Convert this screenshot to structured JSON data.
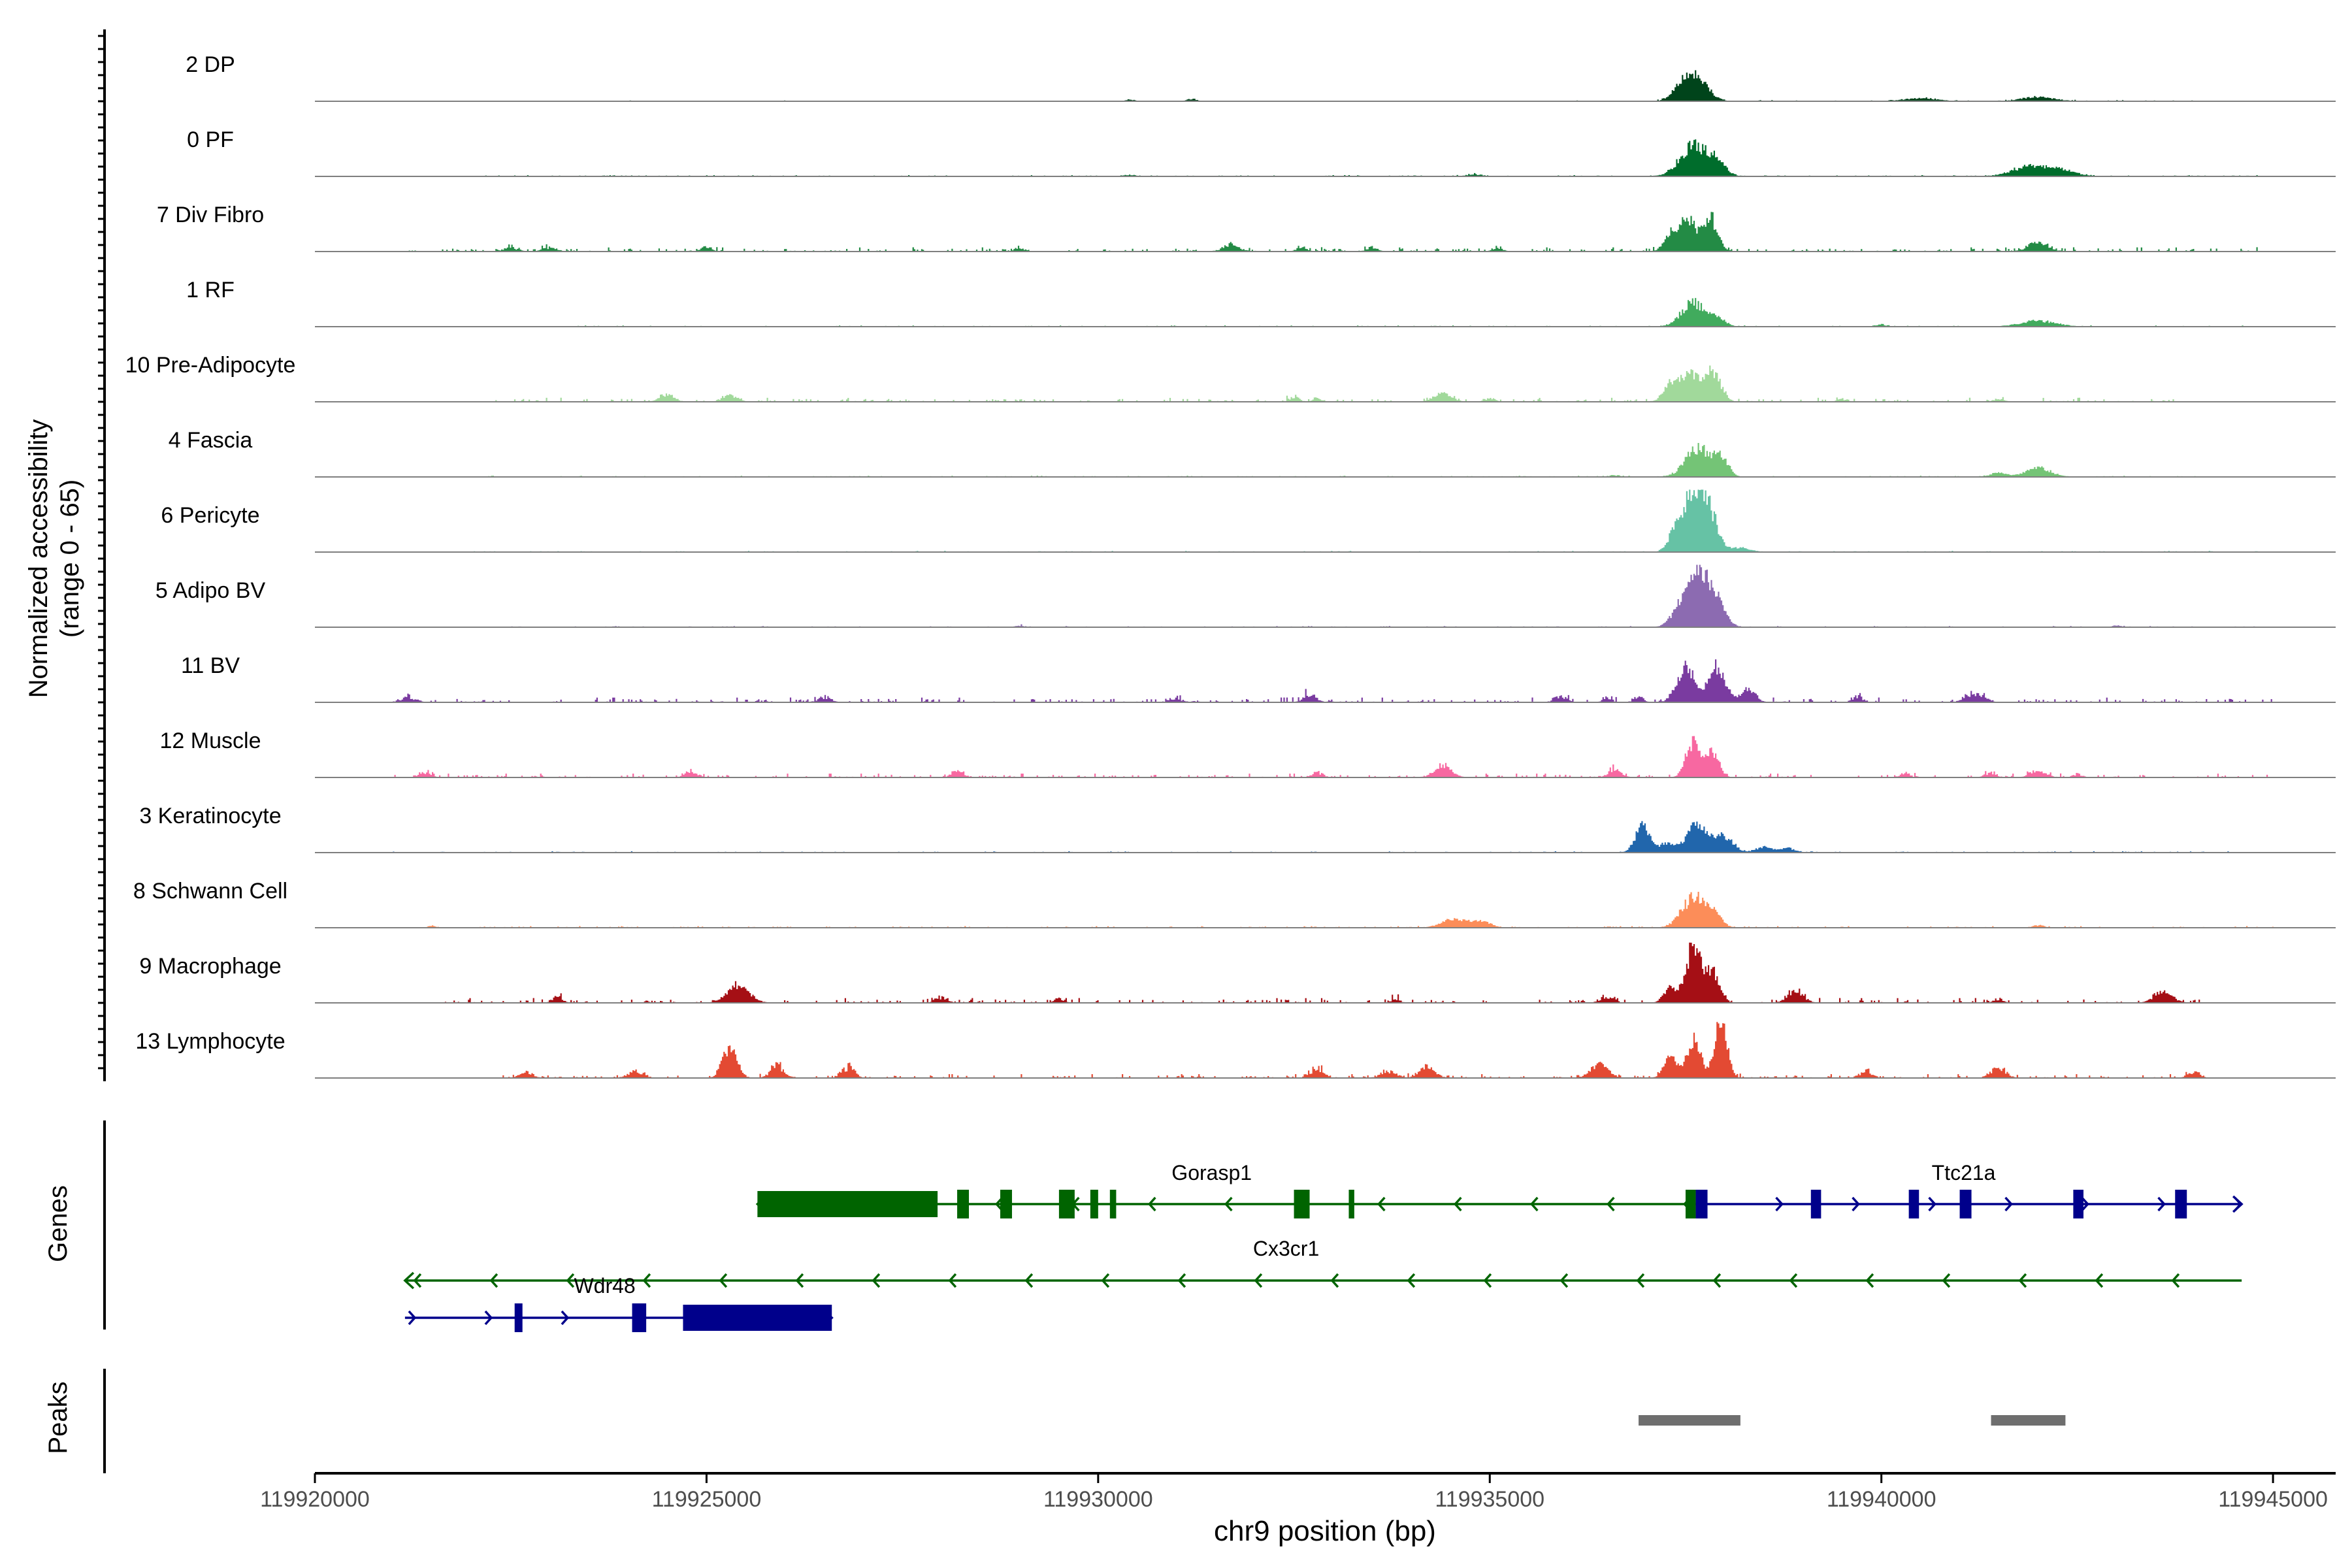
{
  "chart_data": {
    "type": "area",
    "subtype": "genome-browser coverage tracks",
    "x": {
      "label": "chr9 position (bp)",
      "range": [
        119920000,
        119945800
      ],
      "ticks": [
        119920000,
        119925000,
        119930000,
        119935000,
        119940000,
        119945000
      ],
      "tick_labels": [
        "119920000",
        "119925000",
        "119930000",
        "119935000",
        "119940000",
        "119945000"
      ]
    },
    "y": {
      "label_line1": "Normalized accessibility",
      "label_line2": "(range 0 - 65)",
      "range": [
        0,
        65
      ]
    },
    "series": [
      {
        "name": "2 DP",
        "color": "#00441b",
        "bg": 0.25,
        "noise": [
          [
            119922500,
            119926000,
            0.6
          ],
          [
            119936000,
            119944000,
            1.0
          ]
        ],
        "peaks": [
          [
            119937620,
            150,
            36
          ],
          [
            119937450,
            120,
            12
          ],
          [
            119942000,
            200,
            6
          ],
          [
            119940500,
            200,
            4
          ]
        ],
        "bumps": [
          [
            119931200,
            60,
            3
          ],
          [
            119930400,
            60,
            2
          ]
        ]
      },
      {
        "name": "0 PF",
        "color": "#006d2c",
        "bg": 0.4,
        "noise": [
          [
            119922000,
            119945000,
            1.0
          ]
        ],
        "peaks": [
          [
            119937600,
            170,
            44
          ],
          [
            119937900,
            110,
            18
          ],
          [
            119941900,
            220,
            14
          ],
          [
            119942300,
            180,
            8
          ]
        ],
        "bumps": [
          [
            119934800,
            80,
            3
          ],
          [
            119930400,
            60,
            2
          ]
        ]
      },
      {
        "name": "7 Div Fibro",
        "color": "#238b45",
        "bg": 0.5,
        "noise": [
          [
            119921200,
            119945000,
            4.0
          ]
        ],
        "peaks": [
          [
            119937530,
            110,
            46
          ],
          [
            119937820,
            90,
            46
          ],
          [
            119937300,
            80,
            20
          ],
          [
            119942000,
            120,
            12
          ]
        ],
        "bumps": [
          [
            119922500,
            80,
            6
          ],
          [
            119923000,
            80,
            5
          ],
          [
            119925000,
            60,
            6
          ],
          [
            119929000,
            60,
            5
          ],
          [
            119931700,
            100,
            9
          ],
          [
            119933500,
            60,
            6
          ],
          [
            119935100,
            60,
            4
          ],
          [
            119932600,
            60,
            5
          ]
        ]
      },
      {
        "name": "1 RF",
        "color": "#41ab5d",
        "bg": 0.3,
        "noise": [
          [
            119923000,
            119945000,
            1.0
          ]
        ],
        "peaks": [
          [
            119937600,
            150,
            34
          ],
          [
            119937900,
            100,
            12
          ],
          [
            119942000,
            220,
            8
          ]
        ],
        "bumps": [
          [
            119940000,
            60,
            3
          ]
        ]
      },
      {
        "name": "10 Pre-Adipocyte",
        "color": "#a1d99b",
        "bg": 0.2,
        "noise": [
          [
            119922300,
            119944000,
            4.0
          ]
        ],
        "peaks": [
          [
            119937550,
            120,
            40
          ],
          [
            119937850,
            100,
            42
          ],
          [
            119937300,
            90,
            22
          ],
          [
            119934400,
            110,
            12
          ],
          [
            119924500,
            90,
            10
          ],
          [
            119925300,
            90,
            9
          ]
        ],
        "bumps": [
          [
            119932500,
            60,
            7
          ],
          [
            119932800,
            60,
            5
          ],
          [
            119935000,
            60,
            5
          ],
          [
            119939500,
            60,
            4
          ],
          [
            119941500,
            60,
            4
          ]
        ]
      },
      {
        "name": "4 Fascia",
        "color": "#74c476",
        "bg": 0.3,
        "noise": [
          [
            119922000,
            119945000,
            1.0
          ]
        ],
        "peaks": [
          [
            119937650,
            150,
            42
          ],
          [
            119937950,
            90,
            28
          ],
          [
            119942000,
            160,
            12
          ],
          [
            119941500,
            100,
            6
          ]
        ],
        "bumps": [
          [
            119936600,
            80,
            2
          ]
        ]
      },
      {
        "name": "6 Pericyte",
        "color": "#66c2a5",
        "bg": 0.3,
        "noise": [
          [
            119922000,
            119945000,
            1.0
          ]
        ],
        "peaks": [
          [
            119937600,
            110,
            80
          ],
          [
            119937800,
            110,
            56
          ],
          [
            119937380,
            90,
            32
          ],
          [
            119938200,
            120,
            6
          ]
        ],
        "bumps": []
      },
      {
        "name": "5 Adipo BV",
        "color": "#8c6bb1",
        "bg": 0.3,
        "noise": [
          [
            119922000,
            119945000,
            1.0
          ]
        ],
        "peaks": [
          [
            119937650,
            130,
            80
          ],
          [
            119937900,
            110,
            34
          ],
          [
            119937400,
            100,
            20
          ]
        ],
        "bumps": [
          [
            119929000,
            60,
            2
          ],
          [
            119943000,
            60,
            2
          ]
        ]
      },
      {
        "name": "11 BV",
        "color": "#7a3ba0",
        "bg": 0,
        "noise": [
          [
            119921000,
            119945000,
            5.0
          ]
        ],
        "peaks": [
          [
            119937500,
            110,
            52
          ],
          [
            119937900,
            110,
            50
          ],
          [
            119938300,
            90,
            18
          ],
          [
            119941200,
            120,
            12
          ]
        ],
        "bumps": [
          [
            119921200,
            100,
            7
          ],
          [
            119926500,
            80,
            8
          ],
          [
            119931000,
            80,
            5
          ],
          [
            119932700,
            80,
            12
          ],
          [
            119935900,
            80,
            8
          ],
          [
            119936500,
            60,
            7
          ],
          [
            119939700,
            70,
            8
          ],
          [
            119936900,
            60,
            8
          ]
        ]
      },
      {
        "name": "12 Muscle",
        "color": "#f768a1",
        "bg": 0,
        "noise": [
          [
            119921000,
            119945000,
            4.0
          ]
        ],
        "peaks": [
          [
            119937600,
            90,
            52
          ],
          [
            119937850,
            80,
            36
          ],
          [
            119934400,
            110,
            16
          ],
          [
            119936600,
            80,
            12
          ],
          [
            119942000,
            100,
            10
          ]
        ],
        "bumps": [
          [
            119921400,
            80,
            7
          ],
          [
            119924800,
            80,
            8
          ],
          [
            119928200,
            80,
            8
          ],
          [
            119932800,
            70,
            7
          ],
          [
            119940300,
            60,
            7
          ],
          [
            119941400,
            70,
            7
          ],
          [
            119942500,
            60,
            5
          ]
        ]
      },
      {
        "name": "3 Keratinocyte",
        "color": "#2166ac",
        "bg": 0.4,
        "noise": [
          [
            119921000,
            119945000,
            1.0
          ]
        ],
        "peaks": [
          [
            119936950,
            90,
            38
          ],
          [
            119937650,
            140,
            40
          ],
          [
            119938000,
            110,
            22
          ],
          [
            119937250,
            90,
            12
          ],
          [
            119938500,
            100,
            8
          ],
          [
            119938800,
            90,
            6
          ]
        ],
        "bumps": []
      },
      {
        "name": "8 Schwann Cell",
        "color": "#fc8d59",
        "bg": 0.2,
        "noise": [
          [
            119922000,
            119945000,
            1.5
          ]
        ],
        "peaks": [
          [
            119937600,
            150,
            42
          ],
          [
            119937850,
            100,
            20
          ],
          [
            119934550,
            160,
            12
          ],
          [
            119934900,
            120,
            8
          ]
        ],
        "bumps": [
          [
            119921500,
            50,
            3
          ],
          [
            119942000,
            80,
            3
          ]
        ]
      },
      {
        "name": "9 Macrophage",
        "color": "#a50f15",
        "bg": 0,
        "noise": [
          [
            119921500,
            119944300,
            5.0
          ]
        ],
        "peaks": [
          [
            119937600,
            100,
            80
          ],
          [
            119937850,
            90,
            40
          ],
          [
            119925400,
            140,
            26
          ],
          [
            119938900,
            100,
            16
          ],
          [
            119943600,
            120,
            14
          ],
          [
            119937300,
            80,
            20
          ]
        ],
        "bumps": [
          [
            119923100,
            60,
            10
          ],
          [
            119928000,
            80,
            8
          ],
          [
            119929500,
            60,
            6
          ],
          [
            119936500,
            80,
            10
          ],
          [
            119933800,
            60,
            5
          ],
          [
            119941500,
            60,
            6
          ]
        ]
      },
      {
        "name": "13 Lymphocyte",
        "color": "#e34a33",
        "bg": 0,
        "noise": [
          [
            119922400,
            119944000,
            4.0
          ]
        ],
        "peaks": [
          [
            119937600,
            90,
            56
          ],
          [
            119937950,
            80,
            80
          ],
          [
            119937300,
            80,
            30
          ],
          [
            119925300,
            90,
            44
          ],
          [
            119936400,
            110,
            20
          ],
          [
            119934200,
            100,
            16
          ]
        ],
        "bumps": [
          [
            119922700,
            80,
            8
          ],
          [
            119924100,
            100,
            10
          ],
          [
            119925900,
            80,
            20
          ],
          [
            119926800,
            80,
            16
          ],
          [
            119932800,
            80,
            14
          ],
          [
            119933700,
            100,
            10
          ],
          [
            119939800,
            80,
            10
          ],
          [
            119941500,
            100,
            14
          ],
          [
            119944000,
            80,
            8
          ]
        ]
      }
    ],
    "genes": [
      {
        "name": "Gorasp1",
        "strand": "-",
        "color": "#006400",
        "row": 0,
        "start": 119925650,
        "end": 119937630,
        "label_x": 119931450,
        "exons": [
          [
            119925650,
            119927950
          ],
          [
            119928200,
            119928350
          ],
          [
            119928750,
            119928900
          ],
          [
            119929500,
            119929700
          ],
          [
            119929900,
            119930000
          ],
          [
            119930150,
            119930230
          ],
          [
            119932500,
            119932700
          ],
          [
            119933200,
            119933270
          ],
          [
            119937500,
            119937630
          ]
        ]
      },
      {
        "name": "Ttc21a",
        "strand": "+",
        "color": "#00008b",
        "row": 0,
        "start": 119937630,
        "end": 119944600,
        "label_x": 119941050,
        "exons": [
          [
            119937630,
            119937780
          ],
          [
            119939100,
            119939230
          ],
          [
            119940350,
            119940480
          ],
          [
            119941000,
            119941150
          ],
          [
            119942450,
            119942580
          ],
          [
            119943750,
            119943900
          ]
        ]
      },
      {
        "name": "Cx3cr1",
        "strand": "-",
        "color": "#006400",
        "row": 1,
        "start": 119921150,
        "end": 119944600,
        "label_x": 119932400,
        "exons": []
      },
      {
        "name": "Wdr48",
        "strand": "+",
        "color": "#00008b",
        "row": 2,
        "start": 119921150,
        "end": 119926600,
        "label_x": 119923700,
        "exons": [
          [
            119922550,
            119922650
          ],
          [
            119924050,
            119924230
          ],
          [
            119924700,
            119926600
          ]
        ]
      }
    ],
    "peaks": [
      [
        119936900,
        119938200
      ],
      [
        119941400,
        119942350
      ]
    ],
    "panel_labels": {
      "genes": "Genes",
      "peaks": "Peaks"
    }
  }
}
